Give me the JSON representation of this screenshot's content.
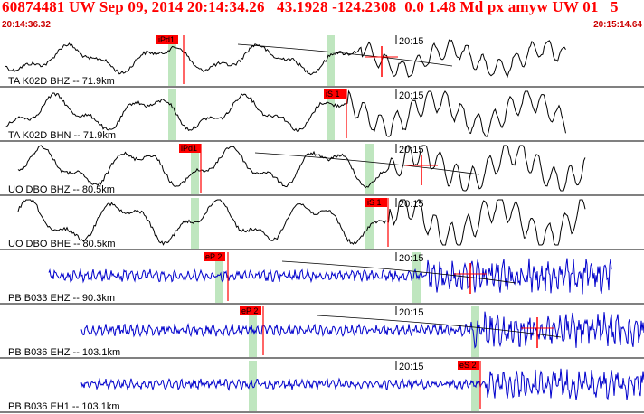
{
  "header": {
    "title": "60874481 UW Sep 09, 2014 20:14:34.26   43.1928 -124.2308  0.0 1.48 Md px amyw UW 01   5",
    "start_time": "20:14:36.32",
    "end_time": "20:15:14.64"
  },
  "colors": {
    "header_text": "#ff0000",
    "trace_black": "#000000",
    "trace_blue": "#0000cc",
    "pick": "#ff0000",
    "pick_window": "#bfe6bf"
  },
  "traces": [
    {
      "label": "TA K02D BHZ -- 71.9km",
      "time_mark": "20:15",
      "pick_label": "iPd1",
      "color": "black"
    },
    {
      "label": "TA K02D BHN -- 71.9km",
      "time_mark": "20:15",
      "pick_label": "iS 1",
      "color": "black"
    },
    {
      "label": "UO DBO BHZ -- 80.5km",
      "time_mark": "20:15",
      "pick_label": "iPd1",
      "color": "black"
    },
    {
      "label": "UO DBO BHE -- 80.5km",
      "time_mark": "20:15",
      "pick_label": "iS 1",
      "color": "black"
    },
    {
      "label": "PB B033 EHZ -- 90.3km",
      "time_mark": "20:15",
      "pick_label": "eP 2",
      "color": "blue"
    },
    {
      "label": "PB B036 EHZ -- 103.1km",
      "time_mark": "20:15",
      "pick_label": "eP 2",
      "color": "blue"
    },
    {
      "label": "PB B036 EH1 -- 103.1km",
      "time_mark": "20:15",
      "pick_label": "eS 2",
      "color": "blue"
    }
  ]
}
